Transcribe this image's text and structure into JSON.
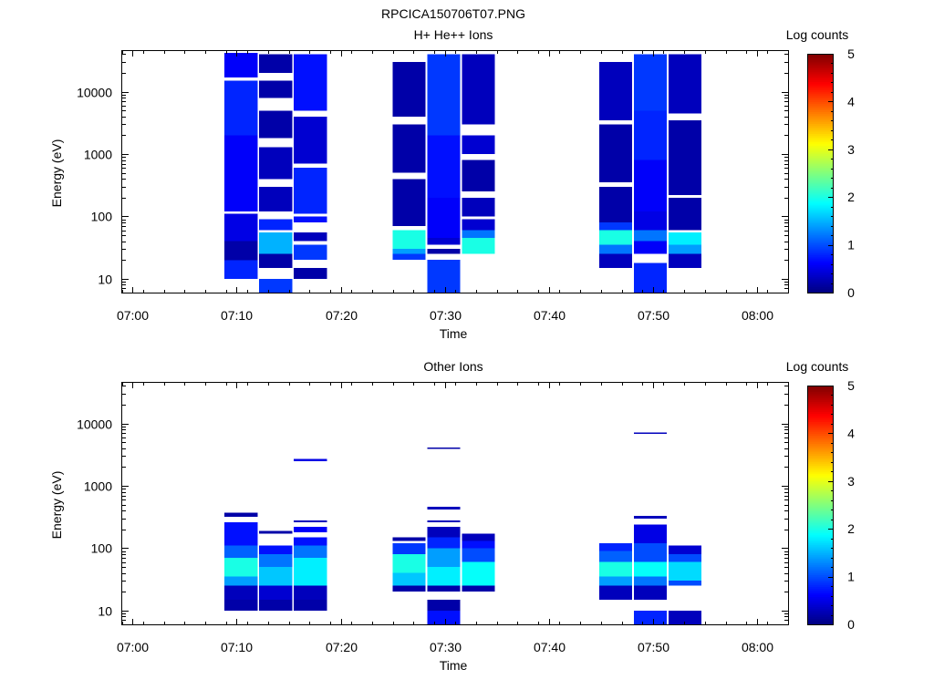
{
  "figure_title": "RPCICA150706T07.PNG",
  "colorscale": [
    "#00007f",
    "#0000ff",
    "#007fff",
    "#00ffff",
    "#7fff7f",
    "#ffff00",
    "#ff7f00",
    "#ff0000",
    "#7f0000"
  ],
  "chart_data": [
    {
      "type": "heatmap",
      "title": "H+ He++ Ions",
      "xlabel": "Time",
      "ylabel": "Energy (eV)",
      "x_axis": {
        "type": "time",
        "range": [
          "06:59",
          "08:03"
        ],
        "ticks": [
          "07:00",
          "07:10",
          "07:20",
          "07:30",
          "07:40",
          "07:50",
          "08:00"
        ]
      },
      "y_axis": {
        "type": "log",
        "range": [
          6,
          45000
        ],
        "ticks": [
          "10",
          "100",
          "1000",
          "10000"
        ]
      },
      "colorbar": {
        "label": "Log counts",
        "range": [
          0,
          5
        ],
        "ticks": [
          "0",
          "1",
          "2",
          "3",
          "4",
          "5"
        ]
      },
      "columns": [
        {
          "t0": "07:08:50",
          "t1": "07:12:00",
          "cells": [
            {
              "e": [
                10,
                20
              ],
              "v": 0.8
            },
            {
              "e": [
                20,
                40
              ],
              "v": 0.2
            },
            {
              "e": [
                40,
                110
              ],
              "v": 0.5
            },
            {
              "e": [
                120,
                2000
              ],
              "v": 0.6
            },
            {
              "e": [
                2000,
                15000
              ],
              "v": 0.8
            },
            {
              "e": [
                17000,
                42000
              ],
              "v": 0.6
            }
          ]
        },
        {
          "t0": "07:12:10",
          "t1": "07:15:20",
          "cells": [
            {
              "e": [
                6,
                10
              ],
              "v": 0.9
            },
            {
              "e": [
                15,
                25
              ],
              "v": 0.2
            },
            {
              "e": [
                25,
                55
              ],
              "v": 1.5
            },
            {
              "e": [
                60,
                90
              ],
              "v": 0.8
            },
            {
              "e": [
                120,
                300
              ],
              "v": 0.3
            },
            {
              "e": [
                400,
                1300
              ],
              "v": 0.3
            },
            {
              "e": [
                1800,
                5000
              ],
              "v": 0.2
            },
            {
              "e": [
                8000,
                15000
              ],
              "v": 0.2
            },
            {
              "e": [
                20000,
                40000
              ],
              "v": 0.2
            }
          ]
        },
        {
          "t0": "07:15:30",
          "t1": "07:18:40",
          "cells": [
            {
              "e": [
                10,
                15
              ],
              "v": 0.2
            },
            {
              "e": [
                20,
                35
              ],
              "v": 0.9
            },
            {
              "e": [
                40,
                55
              ],
              "v": 0.3
            },
            {
              "e": [
                80,
                100
              ],
              "v": 0.7
            },
            {
              "e": [
                110,
                600
              ],
              "v": 0.8
            },
            {
              "e": [
                700,
                4000
              ],
              "v": 0.4
            },
            {
              "e": [
                5000,
                40000
              ],
              "v": 0.7
            }
          ]
        },
        {
          "t0": "07:25:00",
          "t1": "07:28:10",
          "cells": [
            {
              "e": [
                20,
                25
              ],
              "v": 0.9
            },
            {
              "e": [
                25,
                30
              ],
              "v": 1.4
            },
            {
              "e": [
                30,
                60
              ],
              "v": 2.0
            },
            {
              "e": [
                70,
                400
              ],
              "v": 0.2
            },
            {
              "e": [
                500,
                3000
              ],
              "v": 0.2
            },
            {
              "e": [
                4000,
                30000
              ],
              "v": 0.2
            }
          ]
        },
        {
          "t0": "07:28:20",
          "t1": "07:31:30",
          "cells": [
            {
              "e": [
                6,
                20
              ],
              "v": 0.9
            },
            {
              "e": [
                25,
                30
              ],
              "v": 0.2
            },
            {
              "e": [
                35,
                45
              ],
              "v": 0.4
            },
            {
              "e": [
                45,
                200
              ],
              "v": 0.6
            },
            {
              "e": [
                200,
                2000
              ],
              "v": 0.7
            },
            {
              "e": [
                2000,
                40000
              ],
              "v": 0.9
            }
          ]
        },
        {
          "t0": "07:31:40",
          "t1": "07:34:50",
          "cells": [
            {
              "e": [
                25,
                45
              ],
              "v": 2.0
            },
            {
              "e": [
                45,
                60
              ],
              "v": 1.2
            },
            {
              "e": [
                60,
                90
              ],
              "v": 0.4
            },
            {
              "e": [
                100,
                200
              ],
              "v": 0.3
            },
            {
              "e": [
                250,
                800
              ],
              "v": 0.2
            },
            {
              "e": [
                1000,
                2000
              ],
              "v": 0.4
            },
            {
              "e": [
                3000,
                40000
              ],
              "v": 0.3
            }
          ]
        },
        {
          "t0": "07:44:50",
          "t1": "07:48:00",
          "cells": [
            {
              "e": [
                15,
                25
              ],
              "v": 0.3
            },
            {
              "e": [
                25,
                35
              ],
              "v": 1.2
            },
            {
              "e": [
                35,
                60
              ],
              "v": 2.0
            },
            {
              "e": [
                60,
                80
              ],
              "v": 0.9
            },
            {
              "e": [
                80,
                300
              ],
              "v": 0.2
            },
            {
              "e": [
                350,
                3000
              ],
              "v": 0.2
            },
            {
              "e": [
                3500,
                30000
              ],
              "v": 0.3
            }
          ]
        },
        {
          "t0": "07:48:10",
          "t1": "07:51:20",
          "cells": [
            {
              "e": [
                6,
                18
              ],
              "v": 0.8
            },
            {
              "e": [
                25,
                40
              ],
              "v": 0.6
            },
            {
              "e": [
                40,
                60
              ],
              "v": 1.2
            },
            {
              "e": [
                60,
                120
              ],
              "v": 0.5
            },
            {
              "e": [
                120,
                800
              ],
              "v": 0.6
            },
            {
              "e": [
                800,
                5000
              ],
              "v": 0.8
            },
            {
              "e": [
                5000,
                40000
              ],
              "v": 0.9
            }
          ]
        },
        {
          "t0": "07:51:30",
          "t1": "07:54:40",
          "cells": [
            {
              "e": [
                15,
                25
              ],
              "v": 0.3
            },
            {
              "e": [
                25,
                35
              ],
              "v": 1.4
            },
            {
              "e": [
                35,
                55
              ],
              "v": 1.8
            },
            {
              "e": [
                60,
                200
              ],
              "v": 0.2
            },
            {
              "e": [
                220,
                3500
              ],
              "v": 0.2
            },
            {
              "e": [
                4500,
                40000
              ],
              "v": 0.3
            }
          ]
        }
      ]
    },
    {
      "type": "heatmap",
      "title": "Other Ions",
      "xlabel": "Time",
      "ylabel": "Energy (eV)",
      "x_axis": {
        "type": "time",
        "range": [
          "06:59",
          "08:03"
        ],
        "ticks": [
          "07:00",
          "07:10",
          "07:20",
          "07:30",
          "07:40",
          "07:50",
          "08:00"
        ]
      },
      "y_axis": {
        "type": "log",
        "range": [
          6,
          45000
        ],
        "ticks": [
          "10",
          "100",
          "1000",
          "10000"
        ]
      },
      "colorbar": {
        "label": "Log counts",
        "range": [
          0,
          5
        ],
        "ticks": [
          "0",
          "1",
          "2",
          "3",
          "4",
          "5"
        ]
      },
      "columns": [
        {
          "t0": "07:08:50",
          "t1": "07:12:00",
          "cells": [
            {
              "e": [
                10,
                15
              ],
              "v": 0.2
            },
            {
              "e": [
                15,
                25
              ],
              "v": 0.3
            },
            {
              "e": [
                25,
                35
              ],
              "v": 1.4
            },
            {
              "e": [
                35,
                70
              ],
              "v": 2.0
            },
            {
              "e": [
                70,
                110
              ],
              "v": 1.1
            },
            {
              "e": [
                110,
                260
              ],
              "v": 0.7
            },
            {
              "e": [
                320,
                370
              ],
              "v": 0.2
            }
          ]
        },
        {
          "t0": "07:12:10",
          "t1": "07:15:20",
          "cells": [
            {
              "e": [
                10,
                15
              ],
              "v": 0.2
            },
            {
              "e": [
                15,
                25
              ],
              "v": 0.4
            },
            {
              "e": [
                25,
                50
              ],
              "v": 1.6
            },
            {
              "e": [
                50,
                80
              ],
              "v": 1.2
            },
            {
              "e": [
                80,
                110
              ],
              "v": 0.7
            },
            {
              "e": [
                170,
                190
              ],
              "v": 0.2
            }
          ]
        },
        {
          "t0": "07:15:30",
          "t1": "07:18:40",
          "cells": [
            {
              "e": [
                10,
                15
              ],
              "v": 0.2
            },
            {
              "e": [
                15,
                25
              ],
              "v": 0.3
            },
            {
              "e": [
                25,
                70
              ],
              "v": 1.8
            },
            {
              "e": [
                70,
                110
              ],
              "v": 1.2
            },
            {
              "e": [
                110,
                150
              ],
              "v": 0.7
            },
            {
              "e": [
                180,
                220
              ],
              "v": 0.6
            },
            {
              "e": [
                260,
                280
              ],
              "v": 0.3
            },
            {
              "e": [
                2500,
                2700
              ],
              "v": 0.5
            }
          ]
        },
        {
          "t0": "07:25:00",
          "t1": "07:28:10",
          "cells": [
            {
              "e": [
                20,
                25
              ],
              "v": 0.2
            },
            {
              "e": [
                25,
                40
              ],
              "v": 1.6
            },
            {
              "e": [
                40,
                80
              ],
              "v": 2.0
            },
            {
              "e": [
                80,
                120
              ],
              "v": 0.9
            },
            {
              "e": [
                130,
                150
              ],
              "v": 0.2
            }
          ]
        },
        {
          "t0": "07:28:20",
          "t1": "07:31:30",
          "cells": [
            {
              "e": [
                6,
                10
              ],
              "v": 0.7
            },
            {
              "e": [
                10,
                15
              ],
              "v": 0.2
            },
            {
              "e": [
                20,
                25
              ],
              "v": 0.2
            },
            {
              "e": [
                25,
                50
              ],
              "v": 1.8
            },
            {
              "e": [
                50,
                100
              ],
              "v": 1.4
            },
            {
              "e": [
                100,
                150
              ],
              "v": 0.8
            },
            {
              "e": [
                150,
                220
              ],
              "v": 0.3
            },
            {
              "e": [
                260,
                280
              ],
              "v": 0.3
            },
            {
              "e": [
                420,
                460
              ],
              "v": 0.3
            },
            {
              "e": [
                3900,
                4100
              ],
              "v": 0.2
            }
          ]
        },
        {
          "t0": "07:31:40",
          "t1": "07:34:50",
          "cells": [
            {
              "e": [
                20,
                25
              ],
              "v": 0.2
            },
            {
              "e": [
                25,
                60
              ],
              "v": 1.9
            },
            {
              "e": [
                60,
                100
              ],
              "v": 1.0
            },
            {
              "e": [
                100,
                130
              ],
              "v": 0.7
            },
            {
              "e": [
                130,
                170
              ],
              "v": 0.3
            }
          ]
        },
        {
          "t0": "07:44:50",
          "t1": "07:48:00",
          "cells": [
            {
              "e": [
                15,
                25
              ],
              "v": 0.3
            },
            {
              "e": [
                25,
                35
              ],
              "v": 1.4
            },
            {
              "e": [
                35,
                60
              ],
              "v": 2.0
            },
            {
              "e": [
                60,
                90
              ],
              "v": 1.1
            },
            {
              "e": [
                90,
                120
              ],
              "v": 0.8
            }
          ]
        },
        {
          "t0": "07:48:10",
          "t1": "07:51:20",
          "cells": [
            {
              "e": [
                6,
                10
              ],
              "v": 0.8
            },
            {
              "e": [
                15,
                25
              ],
              "v": 0.3
            },
            {
              "e": [
                25,
                35
              ],
              "v": 1.2
            },
            {
              "e": [
                35,
                60
              ],
              "v": 1.9
            },
            {
              "e": [
                60,
                120
              ],
              "v": 1.0
            },
            {
              "e": [
                120,
                240
              ],
              "v": 0.5
            },
            {
              "e": [
                300,
                330
              ],
              "v": 0.3
            },
            {
              "e": [
                6800,
                7200
              ],
              "v": 0.3
            }
          ]
        },
        {
          "t0": "07:51:30",
          "t1": "07:54:40",
          "cells": [
            {
              "e": [
                6,
                10
              ],
              "v": 0.3
            },
            {
              "e": [
                25,
                30
              ],
              "v": 1.0
            },
            {
              "e": [
                30,
                60
              ],
              "v": 1.7
            },
            {
              "e": [
                60,
                80
              ],
              "v": 1.0
            },
            {
              "e": [
                80,
                110
              ],
              "v": 0.4
            }
          ]
        }
      ]
    }
  ]
}
